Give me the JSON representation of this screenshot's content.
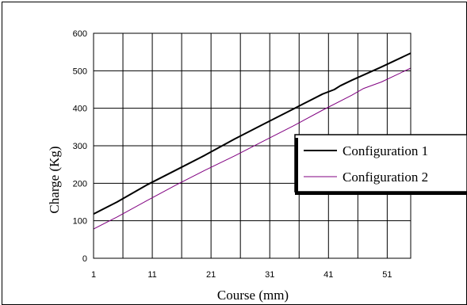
{
  "chart_data": {
    "type": "line",
    "xlabel": "Course (mm)",
    "ylabel": "Charge (Kg)",
    "xlim": [
      1,
      55
    ],
    "ylim": [
      0,
      600
    ],
    "x_ticks": [
      "1",
      "11",
      "21",
      "31",
      "41",
      "51"
    ],
    "y_ticks": [
      "0",
      "100",
      "200",
      "300",
      "400",
      "500",
      "600"
    ],
    "grid": true,
    "legend_position": "right",
    "series": [
      {
        "name": "Configuration 1",
        "color": "#000000",
        "x": [
          1,
          5,
          10,
          15,
          20,
          25,
          30,
          35,
          40,
          42,
          43,
          45,
          50,
          55
        ],
        "y": [
          118,
          150,
          195,
          235,
          275,
          318,
          358,
          398,
          438,
          450,
          460,
          475,
          510,
          547
        ]
      },
      {
        "name": "Configuration 2",
        "color": "#800080",
        "x": [
          1,
          5,
          10,
          15,
          20,
          25,
          30,
          35,
          40,
          45,
          47,
          50,
          55
        ],
        "y": [
          78,
          110,
          153,
          195,
          235,
          273,
          313,
          353,
          395,
          435,
          453,
          470,
          507
        ]
      }
    ]
  }
}
